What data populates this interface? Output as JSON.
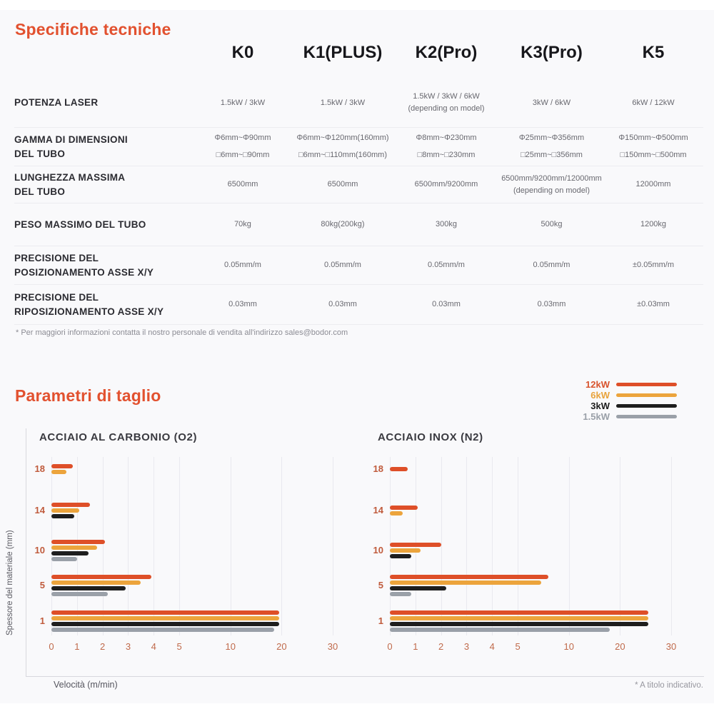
{
  "specs": {
    "title": "Specifiche tecniche",
    "columns": [
      "K0",
      "K1(PLUS)",
      "K2(Pro)",
      "K3(Pro)",
      "K5"
    ],
    "rows": [
      {
        "label": [
          "POTENZA LASER"
        ],
        "values": [
          [
            "1.5kW / 3kW"
          ],
          [
            "1.5kW / 3kW"
          ],
          [
            "1.5kW / 3kW / 6kW",
            "(depending on model)"
          ],
          [
            "3kW / 6kW"
          ],
          [
            "6kW / 12kW"
          ]
        ]
      },
      {
        "label": [
          "GAMMA DI DIMENSIONI",
          "DEL TUBO"
        ],
        "values": [
          [
            "Φ6mm~Φ90mm",
            "□6mm~□90mm"
          ],
          [
            "Φ6mm~Φ120mm(160mm)",
            "□6mm~□110mm(160mm)"
          ],
          [
            "Φ8mm~Φ230mm",
            "□8mm~□230mm"
          ],
          [
            "Φ25mm~Φ356mm",
            "□25mm~□356mm"
          ],
          [
            "Φ150mm~Φ500mm",
            "□150mm~□500mm"
          ]
        ]
      },
      {
        "label": [
          "LUNGHEZZA MASSIMA",
          "DEL TUBO"
        ],
        "values": [
          [
            "6500mm"
          ],
          [
            "6500mm"
          ],
          [
            "6500mm/9200mm"
          ],
          [
            "6500mm/9200mm/12000mm",
            "(depending on model)"
          ],
          [
            "12000mm"
          ]
        ]
      },
      {
        "label": [
          "PESO MASSIMO DEL TUBO"
        ],
        "values": [
          [
            "70kg"
          ],
          [
            "80kg(200kg)"
          ],
          [
            "300kg"
          ],
          [
            "500kg"
          ],
          [
            "1200kg"
          ]
        ]
      },
      {
        "label": [
          "PRECISIONE DEL",
          "POSIZIONAMENTO ASSE X/Y"
        ],
        "values": [
          [
            "0.05mm/m"
          ],
          [
            "0.05mm/m"
          ],
          [
            "0.05mm/m"
          ],
          [
            "0.05mm/m"
          ],
          [
            "±0.05mm/m"
          ]
        ]
      },
      {
        "label": [
          "PRECISIONE DEL",
          "RIPOSIZIONAMENTO ASSE X/Y"
        ],
        "values": [
          [
            "0.03mm"
          ],
          [
            "0.03mm"
          ],
          [
            "0.03mm"
          ],
          [
            "0.03mm"
          ],
          [
            "±0.03mm"
          ]
        ]
      }
    ],
    "footnote": "* Per maggiori informazioni contatta il nostro personale di vendita all'indirizzo sales@bodor.com"
  },
  "cutting": {
    "title": "Parametri di taglio",
    "legend": [
      {
        "label": "12kW",
        "color": "#de4f28",
        "label_color": "#d8532c"
      },
      {
        "label": "6kW",
        "color": "#eca43c",
        "label_color": "#e8a33c"
      },
      {
        "label": "3kW",
        "color": "#1e1e1e",
        "label_color": "#1c1c1c"
      },
      {
        "label": "1.5kW",
        "color": "#9aa0a8",
        "label_color": "#9aa0a8"
      }
    ],
    "ylabel": "Spessore del materiale (mm)",
    "xlabel": "Velocità (m/min)",
    "footnote": "* A titolo indicativo."
  },
  "chart_data": [
    {
      "type": "bar",
      "title": "ACCIAIO AL CARBONIO (O2)",
      "orientation": "horizontal",
      "categories": [
        18,
        14,
        10,
        5,
        1
      ],
      "series": [
        {
          "name": "12kW",
          "values": [
            0.85,
            1.5,
            2.1,
            3.9,
            19.5
          ]
        },
        {
          "name": "6kW",
          "values": [
            0.6,
            1.1,
            1.8,
            3.5,
            19.5
          ]
        },
        {
          "name": "3kW",
          "values": [
            null,
            0.9,
            1.45,
            2.9,
            19.5
          ]
        },
        {
          "name": "1.5kW",
          "values": [
            null,
            null,
            1.0,
            2.2,
            18.5
          ]
        }
      ],
      "x_ticks": [
        0,
        1,
        2,
        3,
        4,
        5,
        10,
        20,
        30
      ],
      "xlabel": "Velocità (m/min)",
      "ylabel": "Spessore del materiale (mm)",
      "xscale": "piecewise: linear 0-5, compressed 5-10, 10-20, 20-30",
      "grid": true
    },
    {
      "type": "bar",
      "title": "ACCIAIO INOX (N2)",
      "orientation": "horizontal",
      "categories": [
        18,
        14,
        10,
        5,
        1
      ],
      "series": [
        {
          "name": "12kW",
          "values": [
            0.7,
            1.1,
            2.0,
            8.0,
            25.5
          ]
        },
        {
          "name": "6kW",
          "values": [
            null,
            0.5,
            1.2,
            7.3,
            25.5
          ]
        },
        {
          "name": "3kW",
          "values": [
            null,
            null,
            0.85,
            2.2,
            25.5
          ]
        },
        {
          "name": "1.5kW",
          "values": [
            null,
            null,
            null,
            0.85,
            18.0
          ]
        }
      ],
      "x_ticks": [
        0,
        1,
        2,
        3,
        4,
        5,
        10,
        20,
        30
      ],
      "xlabel": "Velocità (m/min)",
      "ylabel": "Spessore del materiale (mm)",
      "xscale": "piecewise: linear 0-5, compressed 5-10, 10-20, 20-30",
      "grid": true
    }
  ]
}
